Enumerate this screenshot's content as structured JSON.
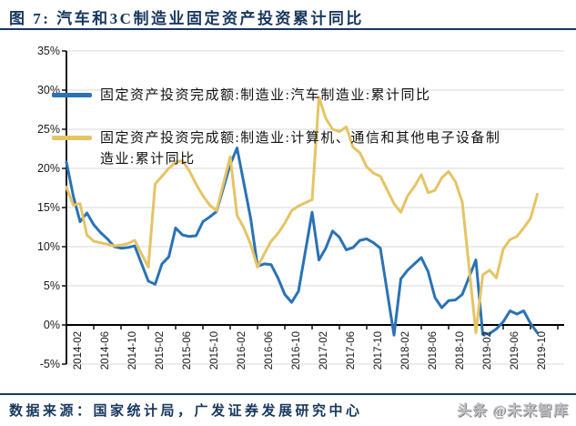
{
  "title": "图 7: 汽车和3C制造业固定资产投资累计同比",
  "footer": {
    "source": "数据来源：国家统计局，广发证券发展研究中心",
    "watermark": "头条 @未来智库"
  },
  "colors": {
    "accent_navy": "#17375E",
    "auto_series": "#2A72B5",
    "electronics_series": "#E5C464",
    "grid": "#D9D9D9",
    "axis": "#000000",
    "watermark_gray": "#9b9b9b"
  },
  "chart_data": {
    "type": "line",
    "title": "汽车和3C制造业固定资产投资累计同比",
    "grid": true,
    "legend_position": "top-left-inside",
    "ylim": [
      -5,
      35
    ],
    "y_tick_values": [
      35,
      30,
      25,
      20,
      15,
      10,
      5,
      0,
      -5
    ],
    "y_tick_labels": [
      "35%",
      "30%",
      "25%",
      "20%",
      "15%",
      "10%",
      "5%",
      "0%",
      "-5%"
    ],
    "x_tick_labels": [
      "2014-02",
      "2014-06",
      "2014-10",
      "2015-02",
      "2015-06",
      "2015-10",
      "2016-02",
      "2016-06",
      "2016-10",
      "2017-02",
      "2017-06",
      "2017-10",
      "2018-02",
      "2018-06",
      "2018-10",
      "2019-02",
      "2019-06",
      "2019-10"
    ],
    "months": [
      "2014-02",
      "2014-03",
      "2014-04",
      "2014-05",
      "2014-06",
      "2014-07",
      "2014-08",
      "2014-09",
      "2014-10",
      "2014-11",
      "2014-12",
      "2015-02",
      "2015-03",
      "2015-04",
      "2015-05",
      "2015-06",
      "2015-07",
      "2015-08",
      "2015-09",
      "2015-10",
      "2015-11",
      "2015-12",
      "2016-02",
      "2016-03",
      "2016-04",
      "2016-05",
      "2016-06",
      "2016-07",
      "2016-08",
      "2016-09",
      "2016-10",
      "2016-11",
      "2016-12",
      "2017-02",
      "2017-03",
      "2017-04",
      "2017-05",
      "2017-06",
      "2017-07",
      "2017-08",
      "2017-09",
      "2017-10",
      "2017-11",
      "2017-12",
      "2018-02",
      "2018-03",
      "2018-04",
      "2018-05",
      "2018-06",
      "2018-07",
      "2018-08",
      "2018-09",
      "2018-10",
      "2018-11",
      "2018-12",
      "2019-02",
      "2019-03",
      "2019-04",
      "2019-05",
      "2019-06",
      "2019-07",
      "2019-08",
      "2019-09",
      "2019-10",
      "2019-11"
    ],
    "series": [
      {
        "name": "固定资产投资完成额:制造业:汽车制造业:累计同比",
        "color": "#2A72B5",
        "values": [
          20.8,
          16.5,
          13.2,
          14.3,
          12.8,
          11.8,
          11.0,
          10.0,
          9.8,
          9.9,
          10.1,
          5.6,
          5.2,
          7.8,
          8.7,
          12.4,
          11.5,
          11.3,
          11.4,
          13.2,
          13.8,
          14.5,
          20.5,
          22.6,
          18.1,
          13.6,
          7.5,
          7.8,
          7.7,
          6.0,
          3.9,
          2.9,
          4.3,
          14.4,
          8.3,
          9.8,
          12.0,
          11.2,
          9.6,
          9.9,
          10.8,
          11.0,
          10.5,
          9.8,
          -1.3,
          5.9,
          7.0,
          7.8,
          8.6,
          6.8,
          3.5,
          2.2,
          3.1,
          3.2,
          3.9,
          8.3,
          -1.2,
          -1.1,
          -0.5,
          0.4,
          1.8,
          1.4,
          1.8,
          0.2,
          -1.0
        ]
      },
      {
        "name": "固定资产投资完成额:制造业:计算机、通信和其他电子设备制造业:累计同比",
        "color": "#E5C464",
        "values": [
          17.6,
          15.3,
          15.5,
          11.5,
          10.7,
          10.5,
          10.3,
          10.1,
          10.2,
          10.4,
          10.8,
          7.4,
          18.0,
          19.0,
          20.0,
          20.8,
          21.0,
          19.7,
          18.0,
          16.5,
          15.3,
          14.6,
          21.5,
          14.0,
          12.4,
          10.3,
          7.4,
          9.1,
          10.7,
          11.7,
          13.0,
          14.6,
          15.2,
          16.0,
          29.1,
          26.4,
          25.0,
          24.7,
          25.3,
          22.7,
          22.0,
          20.2,
          19.4,
          19.0,
          15.5,
          14.4,
          16.5,
          17.7,
          19.2,
          16.9,
          17.2,
          18.8,
          19.6,
          18.3,
          15.7,
          -1.0,
          6.4,
          7.0,
          6.0,
          9.7,
          10.9,
          11.3,
          12.4,
          13.6,
          16.7
        ]
      }
    ]
  }
}
